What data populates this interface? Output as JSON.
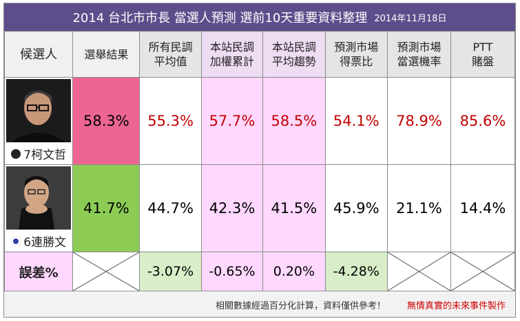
{
  "title": {
    "main": "2014 台北市市長 當選人預測 選前10天重要資料整理",
    "date": "2014年11月18日"
  },
  "headers": [
    "候選人",
    "選舉結果",
    "所有民調\n平均值",
    "本站民調\n加權累計",
    "本站民調\n平均趨勢",
    "預測市場\n得票比",
    "預測市場\n當選機率",
    "PTT\n賭盤"
  ],
  "candidates": [
    {
      "name": "7柯文哲",
      "badge_icon": "independent-badge-icon",
      "result": "58.3%",
      "values": [
        "55.3%",
        "57.7%",
        "58.5%",
        "54.1%",
        "78.9%",
        "85.6%"
      ]
    },
    {
      "name": "6連勝文",
      "badge_icon": "kmt-emblem-icon",
      "result": "41.7%",
      "values": [
        "44.7%",
        "42.3%",
        "41.5%",
        "45.9%",
        "21.1%",
        "14.4%"
      ]
    }
  ],
  "error_row": {
    "label": "誤差%",
    "values": [
      "",
      "-3.07%",
      "-0.65%",
      "0.20%",
      "-4.28%",
      "",
      ""
    ]
  },
  "footer": {
    "note": "相關數據經過百分化計算，資料僅供參考！",
    "credit": "無情真實的未來事件製作"
  },
  "colors": {
    "title_bar": "#5e4d8b",
    "winner": "#ec6593",
    "loser": "#8ccc55",
    "highlight_pink": "#ffd8ff",
    "highlight_green": "#d8eec8",
    "value_red": "#c10000"
  }
}
